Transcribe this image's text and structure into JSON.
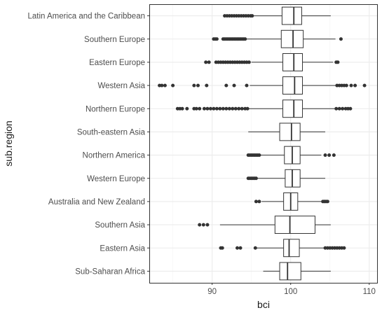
{
  "chart_data": {
    "type": "boxplot",
    "orientation": "horizontal",
    "xlabel": "bci",
    "ylabel": "sub.region",
    "xlim": [
      82,
      111
    ],
    "x_ticks": [
      90,
      100,
      110
    ],
    "x_tick_labels": [
      "90",
      "100",
      "110"
    ],
    "grid": true,
    "theme": "bw",
    "colors": {
      "panel_border": "#333333",
      "grid_major": "#ebebeb",
      "grid_minor": "#f5f5f5",
      "box_line": "#333333",
      "outlier": "#333333"
    },
    "categories": [
      "Latin America and the Caribbean",
      "Southern Europe",
      "Eastern Europe",
      "Western Asia",
      "Northern Europe",
      "South-eastern Asia",
      "Northern America",
      "Western Europe",
      "Australia and New Zealand",
      "Southern Asia",
      "Eastern Asia",
      "Sub-Saharan Africa"
    ],
    "boxes": [
      {
        "region": "Latin America and the Caribbean",
        "whisker_low": 91.5,
        "q1": 98.9,
        "median": 100.4,
        "q3": 101.4,
        "whisker_high": 105.1,
        "outliers": [
          91.6,
          91.9,
          92.2,
          92.5,
          92.8,
          93.1,
          93.4,
          93.7,
          94.0,
          94.3,
          94.6,
          94.9,
          95.1
        ]
      },
      {
        "region": "Southern Europe",
        "whisker_low": 94.4,
        "q1": 98.8,
        "median": 100.3,
        "q3": 101.6,
        "whisker_high": 105.7,
        "outliers": [
          90.2,
          90.4,
          90.6,
          91.4,
          91.6,
          91.8,
          92.0,
          92.2,
          92.4,
          92.6,
          92.8,
          93.0,
          93.2,
          93.4,
          93.6,
          93.8,
          94.0,
          94.2,
          106.4
        ]
      },
      {
        "region": "Eastern Europe",
        "whisker_low": 95.0,
        "q1": 99.0,
        "median": 100.4,
        "q3": 101.5,
        "whisker_high": 105.4,
        "outliers": [
          89.2,
          89.6,
          90.5,
          90.8,
          91.1,
          91.4,
          91.7,
          92.0,
          92.3,
          92.6,
          92.9,
          93.2,
          93.5,
          93.8,
          94.1,
          94.4,
          94.7,
          105.8,
          106.0
        ]
      },
      {
        "region": "Western Asia",
        "whisker_low": 94.8,
        "q1": 99.0,
        "median": 100.5,
        "q3": 101.5,
        "whisker_high": 105.7,
        "outliers": [
          83.3,
          83.6,
          84.0,
          85.0,
          87.7,
          88.2,
          89.3,
          91.8,
          92.8,
          94.4,
          105.9,
          106.2,
          106.5,
          106.8,
          107.1,
          107.7,
          108.2,
          109.4
        ]
      },
      {
        "region": "Northern Europe",
        "whisker_low": 94.6,
        "q1": 99.0,
        "median": 100.4,
        "q3": 101.5,
        "whisker_high": 105.6,
        "outliers": [
          85.6,
          85.9,
          86.2,
          86.8,
          87.7,
          88.0,
          88.4,
          89.0,
          89.4,
          89.8,
          90.2,
          90.6,
          91.0,
          91.4,
          91.8,
          92.2,
          92.6,
          93.0,
          93.4,
          93.8,
          94.2,
          94.5,
          105.8,
          106.2,
          106.6,
          107.0,
          107.3,
          107.6
        ]
      },
      {
        "region": "South-eastern Asia",
        "whisker_low": 94.6,
        "q1": 98.6,
        "median": 100.1,
        "q3": 101.2,
        "whisker_high": 104.4,
        "outliers": []
      },
      {
        "region": "Northern America",
        "whisker_low": 96.1,
        "q1": 99.2,
        "median": 100.2,
        "q3": 101.2,
        "whisker_high": 103.9,
        "outliers": [
          94.6,
          94.8,
          95.0,
          95.2,
          95.4,
          95.6,
          95.8,
          96.0,
          104.4,
          104.9,
          105.5
        ]
      },
      {
        "region": "Western Europe",
        "whisker_low": 95.8,
        "q1": 99.3,
        "median": 100.2,
        "q3": 101.2,
        "whisker_high": 104.4,
        "outliers": [
          94.6,
          94.8,
          95.0,
          95.2,
          95.4,
          95.6
        ]
      },
      {
        "region": "Australia and New Zealand",
        "whisker_low": 96.3,
        "q1": 99.1,
        "median": 100.0,
        "q3": 100.9,
        "whisker_high": 103.9,
        "outliers": [
          95.6,
          96.0,
          104.1,
          104.3,
          104.5,
          104.7
        ]
      },
      {
        "region": "Southern Asia",
        "whisker_low": 91.0,
        "q1": 98.0,
        "median": 99.9,
        "q3": 103.1,
        "whisker_high": 105.1,
        "outliers": [
          88.4,
          88.9,
          89.4
        ]
      },
      {
        "region": "Eastern Asia",
        "whisker_low": 95.6,
        "q1": 99.1,
        "median": 99.8,
        "q3": 101.1,
        "whisker_high": 104.3,
        "outliers": [
          91.1,
          91.3,
          93.2,
          93.6,
          95.5,
          104.4,
          104.7,
          105.0,
          105.3,
          105.6,
          105.9,
          106.2,
          106.5,
          106.8
        ]
      },
      {
        "region": "Sub-Saharan Africa",
        "whisker_low": 96.5,
        "q1": 98.6,
        "median": 99.6,
        "q3": 101.3,
        "whisker_high": 105.1,
        "outliers": []
      }
    ]
  }
}
